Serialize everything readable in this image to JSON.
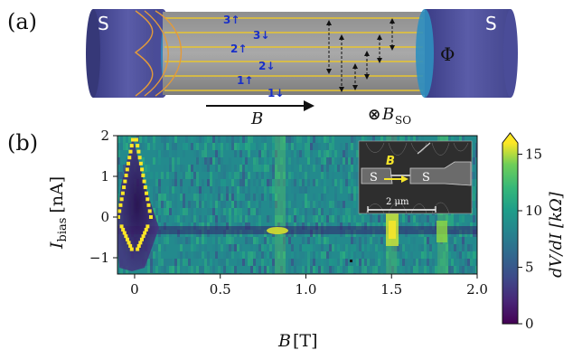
{
  "panel_a": {
    "label": "(a)",
    "lead_left": "S",
    "lead_right": "S",
    "flux_symbol": "Φ",
    "field_label": "B",
    "so_symbol": "⊗",
    "so_label": "B",
    "so_subscript": "SO",
    "subbands": [
      {
        "text": "3↑"
      },
      {
        "text": "3↓"
      },
      {
        "text": "2↑"
      },
      {
        "text": "2↓"
      },
      {
        "text": "1↑"
      },
      {
        "text": "1↓"
      }
    ]
  },
  "panel_b": {
    "label": "(b)",
    "inset": {
      "field_label": "B",
      "lead_left": "S",
      "lead_right": "S",
      "scale_label": "2 μm"
    }
  },
  "chart_data": {
    "type": "heatmap",
    "xlabel_main": "B",
    "xlabel_unit": "[T]",
    "ylabel_main": "I",
    "ylabel_sub": "bias",
    "ylabel_unit": "[nA]",
    "xlim": [
      -0.1,
      2.0
    ],
    "ylim": [
      -1.4,
      2.0
    ],
    "x_ticks": [
      0.0,
      0.5,
      1.0,
      1.5,
      2.0
    ],
    "x_tick_labels": [
      "0",
      "0.5",
      "1.0",
      "1.5",
      "2.0"
    ],
    "y_ticks": [
      -1,
      0,
      1,
      2
    ],
    "y_tick_labels": [
      "−1",
      "0",
      "1",
      "2"
    ],
    "colorbar": {
      "label": "dV/dI [kΩ]",
      "range": [
        0,
        16
      ],
      "ticks": [
        0,
        5,
        10,
        15
      ],
      "tick_labels": [
        "0",
        "5",
        "10",
        "15"
      ],
      "colormap": "viridis"
    },
    "switching_current_peak": {
      "B": 0.0,
      "I": 1.9
    },
    "bright_stripes_B": [
      0.85,
      1.5,
      1.8
    ]
  }
}
